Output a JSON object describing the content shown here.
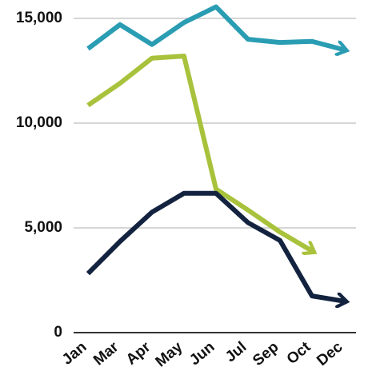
{
  "chart_data": {
    "type": "line",
    "categories": [
      "Jan",
      "Mar",
      "Apr",
      "May",
      "Jun",
      "Jul",
      "Sep",
      "Oct",
      "Dec"
    ],
    "series": [
      {
        "color": "#2a9db3",
        "values": [
          13550,
          14700,
          13750,
          14800,
          15550,
          14000,
          13850,
          13900,
          13500
        ]
      },
      {
        "color": "#a8c23c",
        "values": [
          10850,
          11900,
          13100,
          13200,
          6850,
          5850,
          4800,
          3900,
          null
        ]
      },
      {
        "color": "#13233f",
        "values": [
          2820,
          4350,
          5750,
          6650,
          6650,
          5250,
          4400,
          1750,
          1500
        ]
      }
    ],
    "ylim": [
      0,
      15800
    ],
    "yticks": [
      0,
      {
        "value": 5000,
        "label": "5,000"
      },
      {
        "value": 10000,
        "label": "10,000"
      },
      {
        "value": 15000,
        "label": "15,000"
      }
    ],
    "grid": true
  }
}
